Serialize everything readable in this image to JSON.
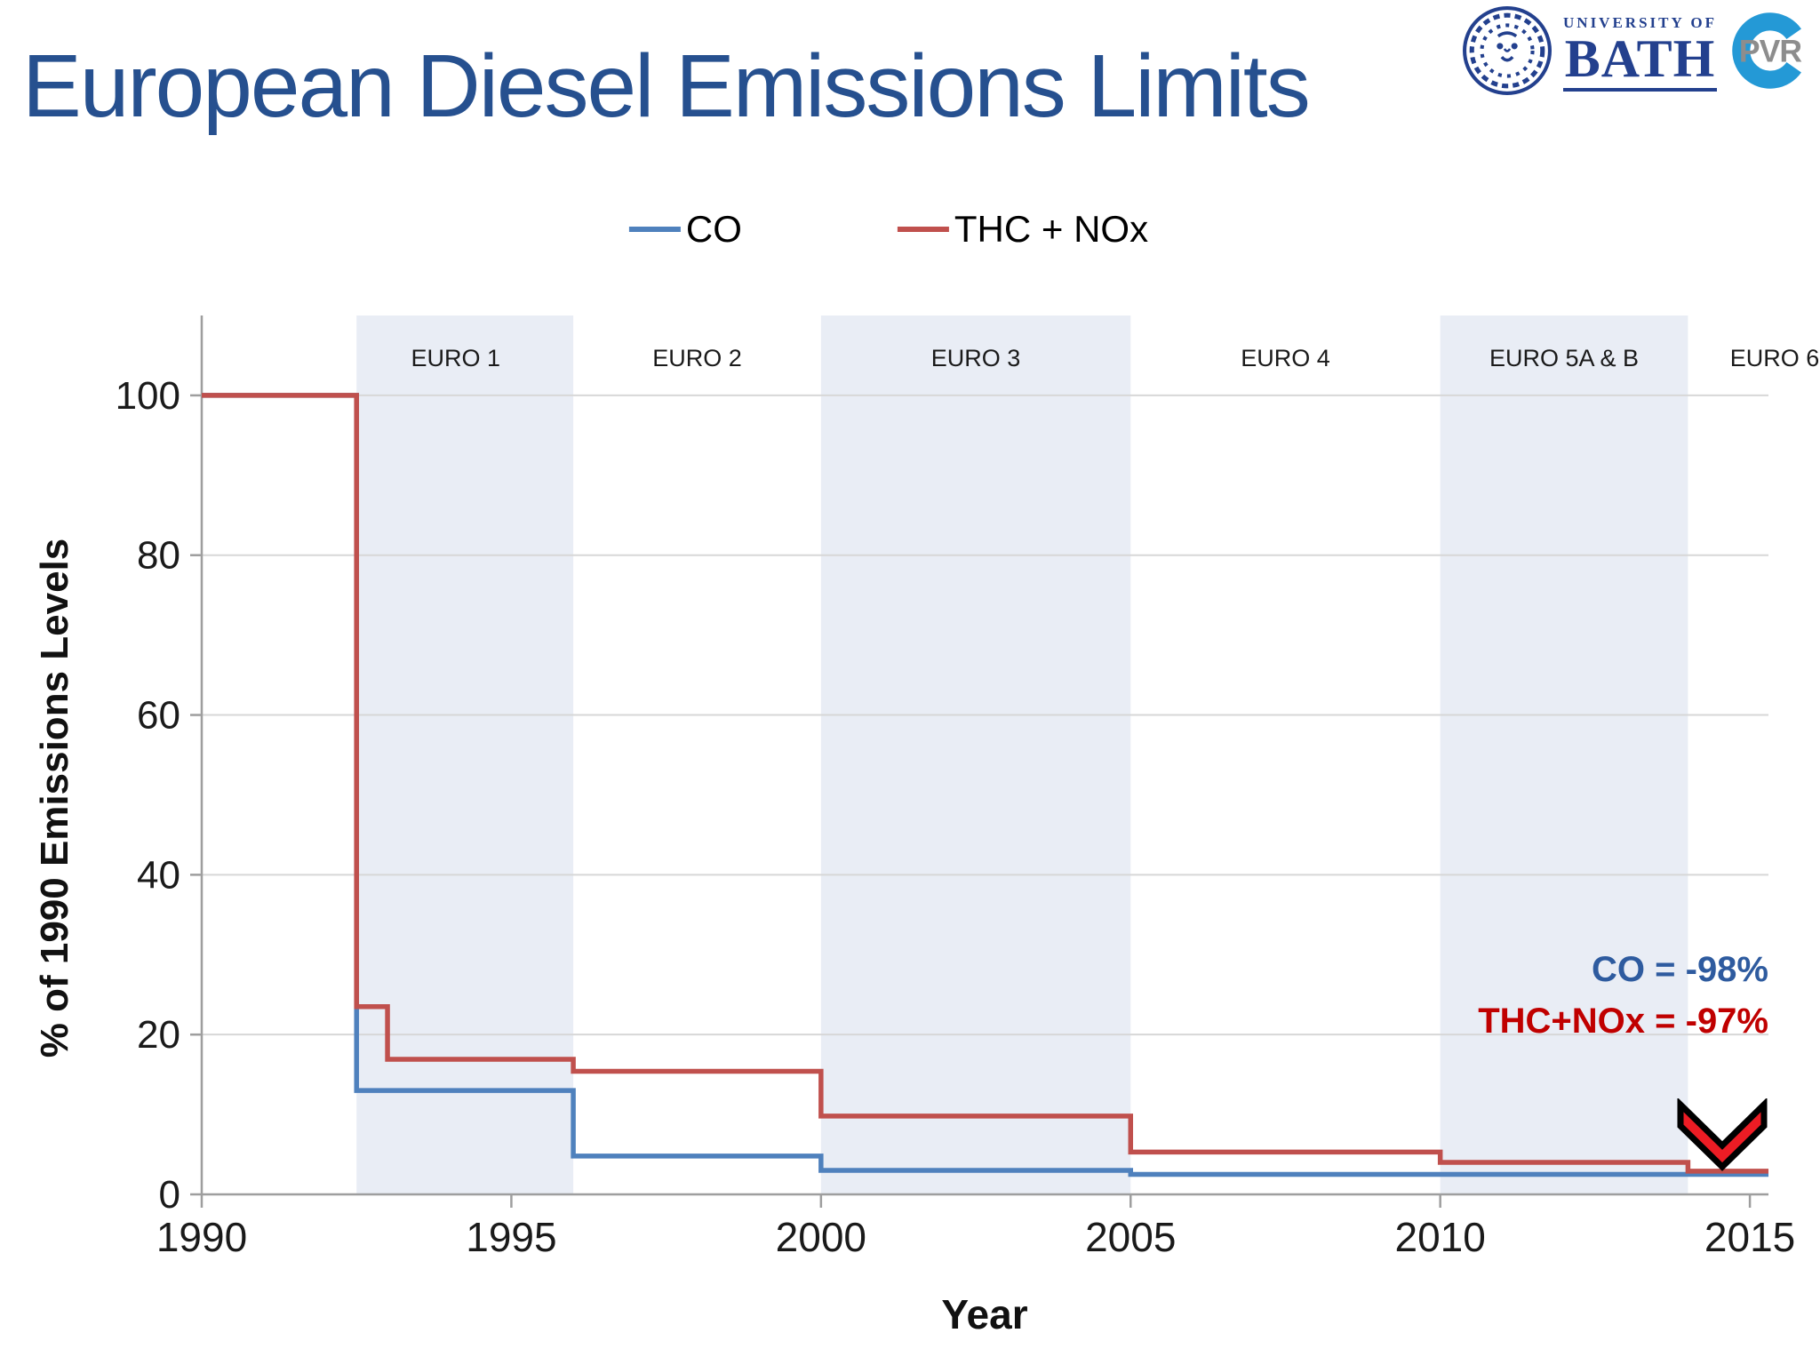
{
  "title": "European Diesel Emissions Limits",
  "logos": {
    "university_small": "UNIVERSITY OF",
    "university_name": "BATH",
    "pvr": "PVR",
    "bath_blue": "#23408E",
    "pvr_blue": "#2499D6",
    "pvr_gray": "#8D8D8D"
  },
  "legend": [
    {
      "label": "CO",
      "color": "#4F81BD"
    },
    {
      "label": "THC + NOx",
      "color": "#C0504D"
    }
  ],
  "annotations": [
    {
      "text": "CO = -98%",
      "color": "#2E5B9F"
    },
    {
      "text": "THC+NOx = -97%",
      "color": "#C00000"
    }
  ],
  "chart_data": {
    "type": "line",
    "subtype": "step",
    "xlabel": "Year",
    "ylabel": "% of 1990 Emissions Levels",
    "x_ticks": [
      1990,
      1995,
      2000,
      2005,
      2010,
      2015
    ],
    "y_ticks": [
      0,
      20,
      40,
      60,
      80,
      100
    ],
    "xlim": [
      1990,
      2015.3
    ],
    "ylim": [
      0,
      110
    ],
    "grid": "horizontal",
    "legend_position": "top-center",
    "band_fill": "#E9EDF5",
    "bands": [
      {
        "label": "EURO 1",
        "start": 1992.5,
        "end": 1996,
        "shaded": true,
        "label_year": 1994.1
      },
      {
        "label": "EURO 2",
        "start": 1996,
        "end": 2000,
        "shaded": false,
        "label_year": 1998
      },
      {
        "label": "EURO 3",
        "start": 2000,
        "end": 2005,
        "shaded": true,
        "label_year": 2002.5
      },
      {
        "label": "EURO 4",
        "start": 2005,
        "end": 2010,
        "shaded": false,
        "label_year": 2007.5
      },
      {
        "label": "EURO 5A & B",
        "start": 2010,
        "end": 2014,
        "shaded": true,
        "label_year": 2012
      },
      {
        "label": "EURO 6",
        "start": 2014,
        "end": 2015.3,
        "shaded": false,
        "label_year": 2015.4
      }
    ],
    "series": [
      {
        "name": "CO",
        "color": "#4F81BD",
        "steps": [
          [
            1990,
            100
          ],
          [
            1992.5,
            13
          ],
          [
            1996,
            4.8
          ],
          [
            2000,
            3.0
          ],
          [
            2005,
            2.5
          ]
        ],
        "end_year": 2015.3
      },
      {
        "name": "THC + NOx",
        "color": "#C0504D",
        "steps": [
          [
            1990,
            100
          ],
          [
            1992.5,
            23.5
          ],
          [
            1993,
            16.9
          ],
          [
            1996,
            15.4
          ],
          [
            2000,
            9.8
          ],
          [
            2005,
            5.3
          ],
          [
            2010,
            4.0
          ],
          [
            2014,
            2.9
          ]
        ],
        "end_year": 2015.3
      }
    ]
  }
}
